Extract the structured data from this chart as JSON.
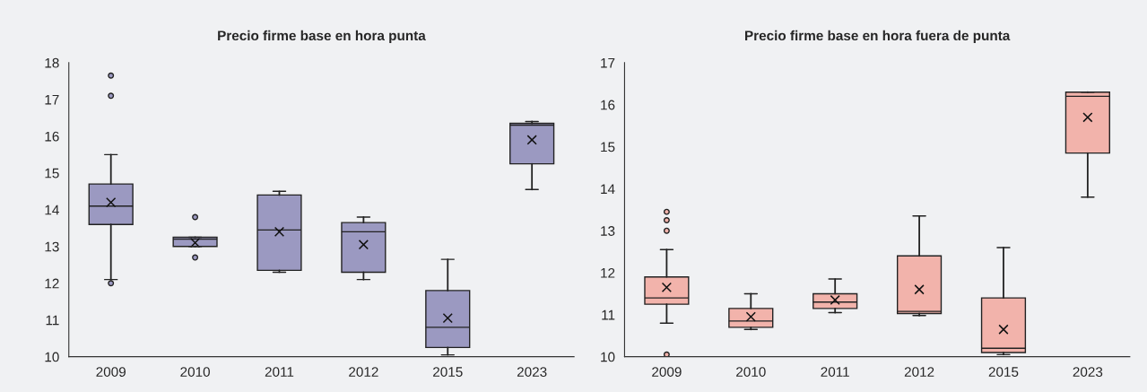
{
  "chart_data": [
    {
      "type": "box",
      "title": "Precio firme base en hora punta",
      "categories": [
        "2009",
        "2010",
        "2011",
        "2012",
        "2015",
        "2023"
      ],
      "ylim": [
        10,
        18
      ],
      "yticks": [
        10,
        11,
        12,
        13,
        14,
        15,
        16,
        17,
        18
      ],
      "grid": false,
      "color": "#9b99c1",
      "boxes": [
        {
          "low": 12.1,
          "q1": 13.6,
          "median": 14.1,
          "q3": 14.7,
          "high": 15.5,
          "mean": 14.2,
          "outliers": [
            17.65,
            17.1,
            12.0
          ]
        },
        {
          "low": 13.0,
          "q1": 13.0,
          "median": 13.2,
          "q3": 13.25,
          "high": 13.25,
          "mean": 13.1,
          "outliers": [
            13.8,
            12.7
          ]
        },
        {
          "low": 12.3,
          "q1": 12.35,
          "median": 13.45,
          "q3": 14.4,
          "high": 14.5,
          "mean": 13.4
        },
        {
          "low": 12.1,
          "q1": 12.3,
          "median": 13.4,
          "q3": 13.65,
          "high": 13.8,
          "mean": 13.05
        },
        {
          "low": 10.05,
          "q1": 10.25,
          "median": 10.8,
          "q3": 11.8,
          "high": 12.65,
          "mean": 11.05
        },
        {
          "low": 14.55,
          "q1": 15.25,
          "median": 16.3,
          "q3": 16.35,
          "high": 16.4,
          "mean": 15.9
        }
      ]
    },
    {
      "type": "box",
      "title": "Precio firme base en hora fuera de punta",
      "categories": [
        "2009",
        "2010",
        "2011",
        "2012",
        "2015",
        "2023"
      ],
      "ylim": [
        10,
        17
      ],
      "yticks": [
        10,
        11,
        12,
        13,
        14,
        15,
        16,
        17
      ],
      "grid": false,
      "color": "#f2b3ab",
      "boxes": [
        {
          "low": 10.8,
          "q1": 11.25,
          "median": 11.4,
          "q3": 11.9,
          "high": 12.55,
          "mean": 11.65,
          "outliers": [
            13.45,
            13.25,
            13.0,
            10.05
          ]
        },
        {
          "low": 10.65,
          "q1": 10.7,
          "median": 10.85,
          "q3": 11.15,
          "high": 11.5,
          "mean": 10.95
        },
        {
          "low": 11.05,
          "q1": 11.15,
          "median": 11.3,
          "q3": 11.5,
          "high": 11.85,
          "mean": 11.35
        },
        {
          "low": 10.98,
          "q1": 11.03,
          "median": 11.08,
          "q3": 12.4,
          "high": 13.35,
          "mean": 11.6
        },
        {
          "low": 10.05,
          "q1": 10.1,
          "median": 10.2,
          "q3": 11.4,
          "high": 12.6,
          "mean": 10.65
        },
        {
          "low": 13.8,
          "q1": 14.85,
          "median": 16.2,
          "q3": 16.3,
          "high": 16.3,
          "mean": 15.7
        }
      ]
    }
  ]
}
